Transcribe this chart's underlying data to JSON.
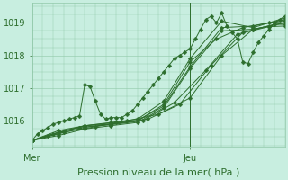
{
  "fig_width": 3.2,
  "fig_height": 2.0,
  "dpi": 100,
  "background_color": "#c8eee0",
  "plot_bg_color": "#c8eee0",
  "grid_color": "#90c8a8",
  "line_color": "#2d6e2d",
  "xlabel": "Pression niveau de la mer( hPa )",
  "yticks": [
    1016,
    1017,
    1018,
    1019
  ],
  "xtick_labels": [
    "Mer",
    "Jeu"
  ],
  "ylim": [
    1015.2,
    1019.6
  ],
  "xlim": [
    0,
    48
  ],
  "vline_x": 30,
  "xlabel_fontsize": 8,
  "tick_fontsize": 7,
  "marker_size": 2.5,
  "line_width": 0.7,
  "series": [
    {
      "x": [
        0,
        1,
        2,
        3,
        4,
        5,
        6,
        7,
        8,
        9,
        10,
        11,
        12,
        13,
        14,
        15,
        16,
        17,
        18,
        19,
        20,
        21,
        22,
        23,
        24,
        25,
        26,
        27,
        28,
        29,
        30,
        31,
        32,
        33,
        34,
        35,
        36,
        37,
        38,
        39,
        40,
        41,
        42,
        43,
        44,
        45,
        46,
        47,
        48
      ],
      "y": [
        1015.4,
        1015.6,
        1015.7,
        1015.8,
        1015.9,
        1015.95,
        1016.0,
        1016.05,
        1016.1,
        1016.15,
        1017.1,
        1017.05,
        1016.6,
        1016.2,
        1016.05,
        1016.1,
        1016.1,
        1016.1,
        1016.2,
        1016.3,
        1016.5,
        1016.7,
        1016.9,
        1017.1,
        1017.3,
        1017.5,
        1017.7,
        1017.9,
        1018.0,
        1018.1,
        1018.2,
        1018.5,
        1018.8,
        1019.1,
        1019.2,
        1019.0,
        1019.3,
        1018.9,
        1018.7,
        1018.5,
        1017.8,
        1017.75,
        1018.1,
        1018.4,
        1018.6,
        1018.8,
        1019.0,
        1019.1,
        1019.2
      ]
    },
    {
      "x": [
        0,
        5,
        10,
        15,
        20,
        25,
        30,
        35,
        40,
        45,
        48
      ],
      "y": [
        1015.4,
        1015.7,
        1015.85,
        1015.9,
        1016.0,
        1016.5,
        1017.8,
        1018.5,
        1018.85,
        1019.0,
        1019.05
      ]
    },
    {
      "x": [
        0,
        5,
        10,
        15,
        20,
        25,
        30,
        36,
        42,
        48
      ],
      "y": [
        1015.4,
        1015.65,
        1015.85,
        1015.95,
        1016.05,
        1016.6,
        1017.9,
        1019.05,
        1018.85,
        1019.15
      ]
    },
    {
      "x": [
        0,
        5,
        10,
        15,
        20,
        25,
        30,
        36,
        42,
        48
      ],
      "y": [
        1015.4,
        1015.6,
        1015.8,
        1015.9,
        1016.0,
        1016.45,
        1017.65,
        1018.85,
        1018.9,
        1019.1
      ]
    },
    {
      "x": [
        0,
        5,
        10,
        15,
        20,
        25,
        30,
        36,
        42,
        48
      ],
      "y": [
        1015.4,
        1015.55,
        1015.75,
        1015.85,
        1015.95,
        1016.4,
        1017.6,
        1018.75,
        1018.8,
        1019.0
      ]
    },
    {
      "x": [
        0,
        4,
        10,
        16,
        22,
        28,
        34,
        40,
        46,
        48
      ],
      "y": [
        1015.4,
        1015.6,
        1015.85,
        1015.95,
        1016.05,
        1016.5,
        1017.7,
        1018.7,
        1018.95,
        1018.95
      ]
    },
    {
      "x": [
        0,
        3,
        9,
        15,
        21,
        27,
        33,
        39,
        45,
        48
      ],
      "y": [
        1015.4,
        1015.55,
        1015.8,
        1015.88,
        1016.0,
        1016.55,
        1017.55,
        1018.65,
        1018.88,
        1018.9
      ]
    },
    {
      "x": [
        0,
        6,
        12,
        18,
        24,
        30,
        36,
        42,
        48
      ],
      "y": [
        1015.4,
        1015.65,
        1015.82,
        1016.0,
        1016.2,
        1016.7,
        1018.0,
        1018.8,
        1019.0
      ]
    }
  ]
}
